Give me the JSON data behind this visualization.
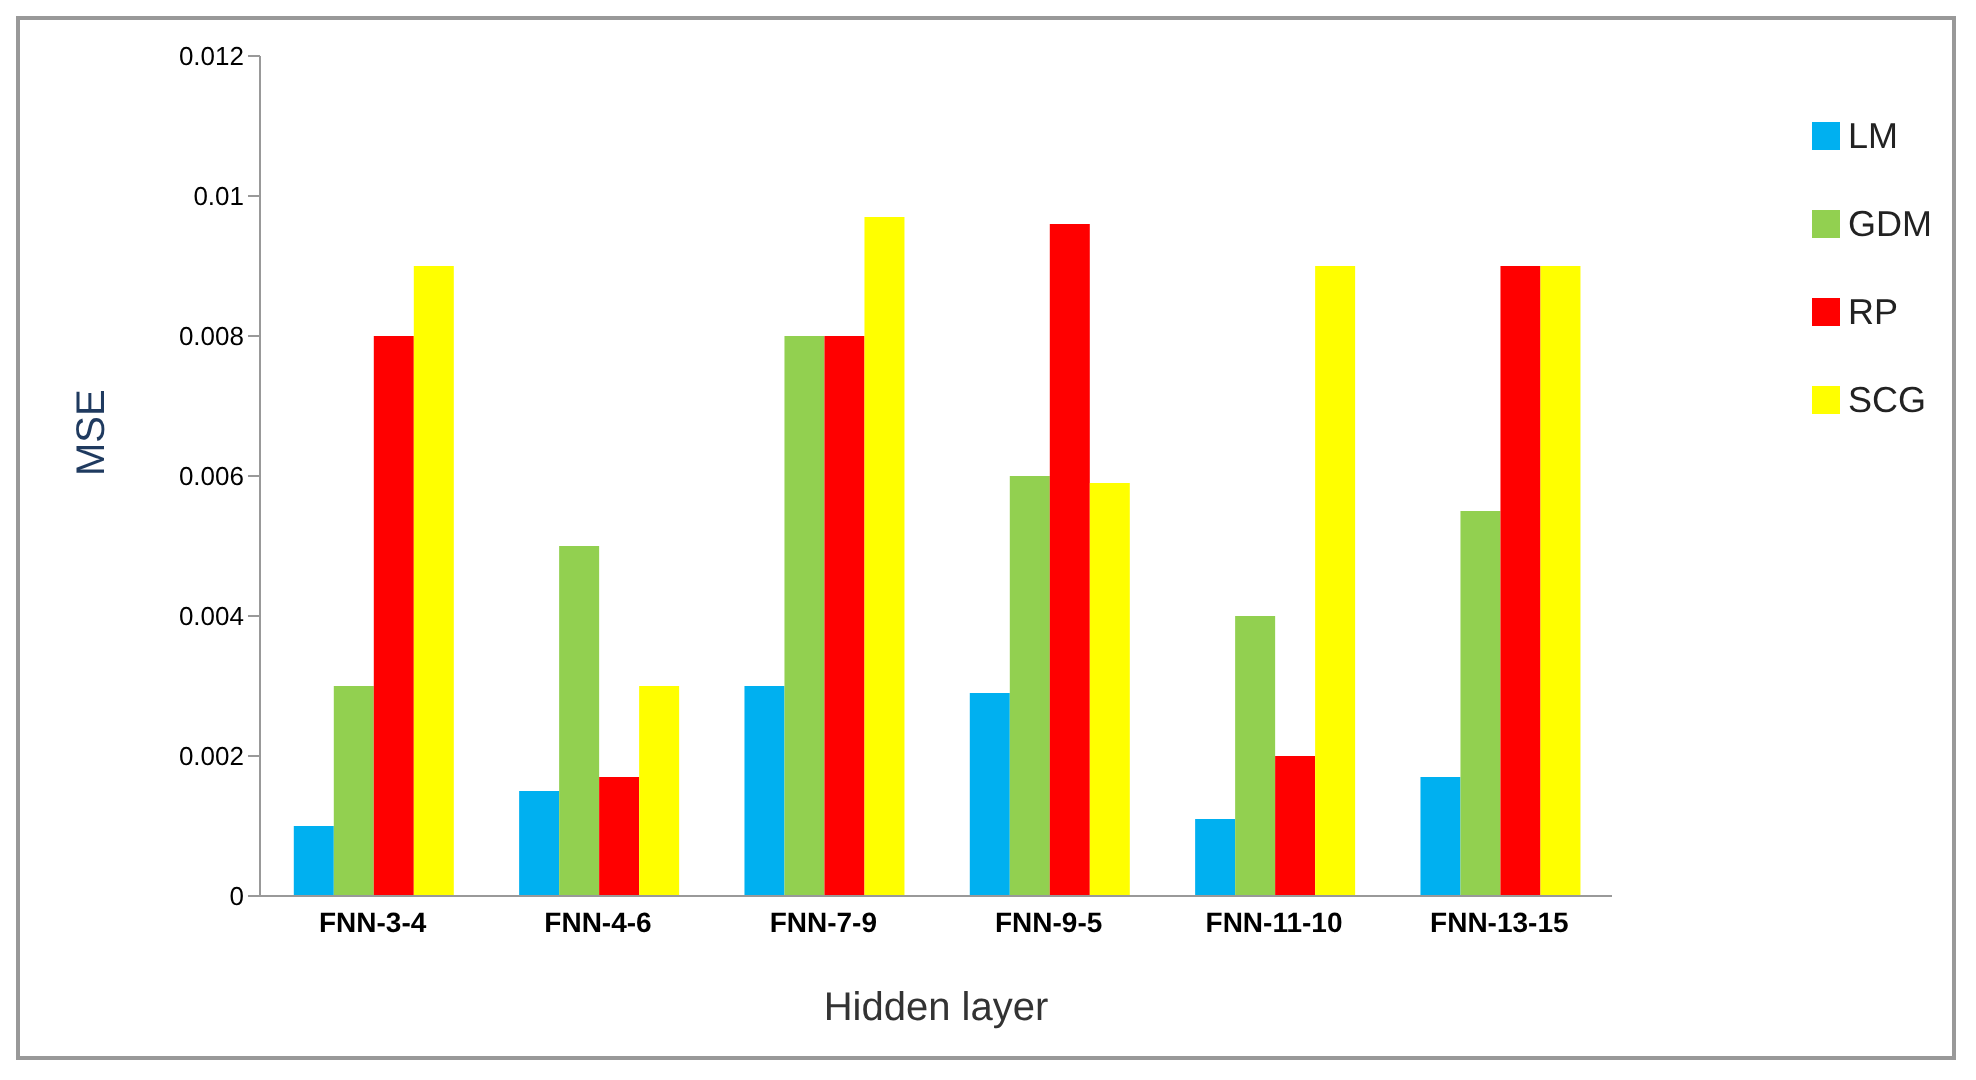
{
  "chart_data": {
    "type": "bar",
    "xlabel": "Hidden layer",
    "ylabel": "MSE",
    "categories": [
      "FNN-3-4",
      "FNN-4-6",
      "FNN-7-9",
      "FNN-9-5",
      "FNN-11-10",
      "FNN-13-15"
    ],
    "series": [
      {
        "name": "LM",
        "color": "#00b0f0",
        "values": [
          0.001,
          0.0015,
          0.003,
          0.0029,
          0.0011,
          0.0017
        ]
      },
      {
        "name": "GDM",
        "color": "#92d050",
        "values": [
          0.003,
          0.005,
          0.008,
          0.006,
          0.004,
          0.0055
        ]
      },
      {
        "name": "RP",
        "color": "#ff0000",
        "values": [
          0.008,
          0.0017,
          0.008,
          0.0096,
          0.002,
          0.009
        ]
      },
      {
        "name": "SCG",
        "color": "#ffff00",
        "values": [
          0.009,
          0.003,
          0.0097,
          0.0059,
          0.009,
          0.009
        ]
      }
    ],
    "ylim": [
      0,
      0.012
    ],
    "yticks": [
      0,
      0.002,
      0.004,
      0.006,
      0.008,
      0.01,
      0.012
    ],
    "grid": false,
    "legend": "right"
  }
}
